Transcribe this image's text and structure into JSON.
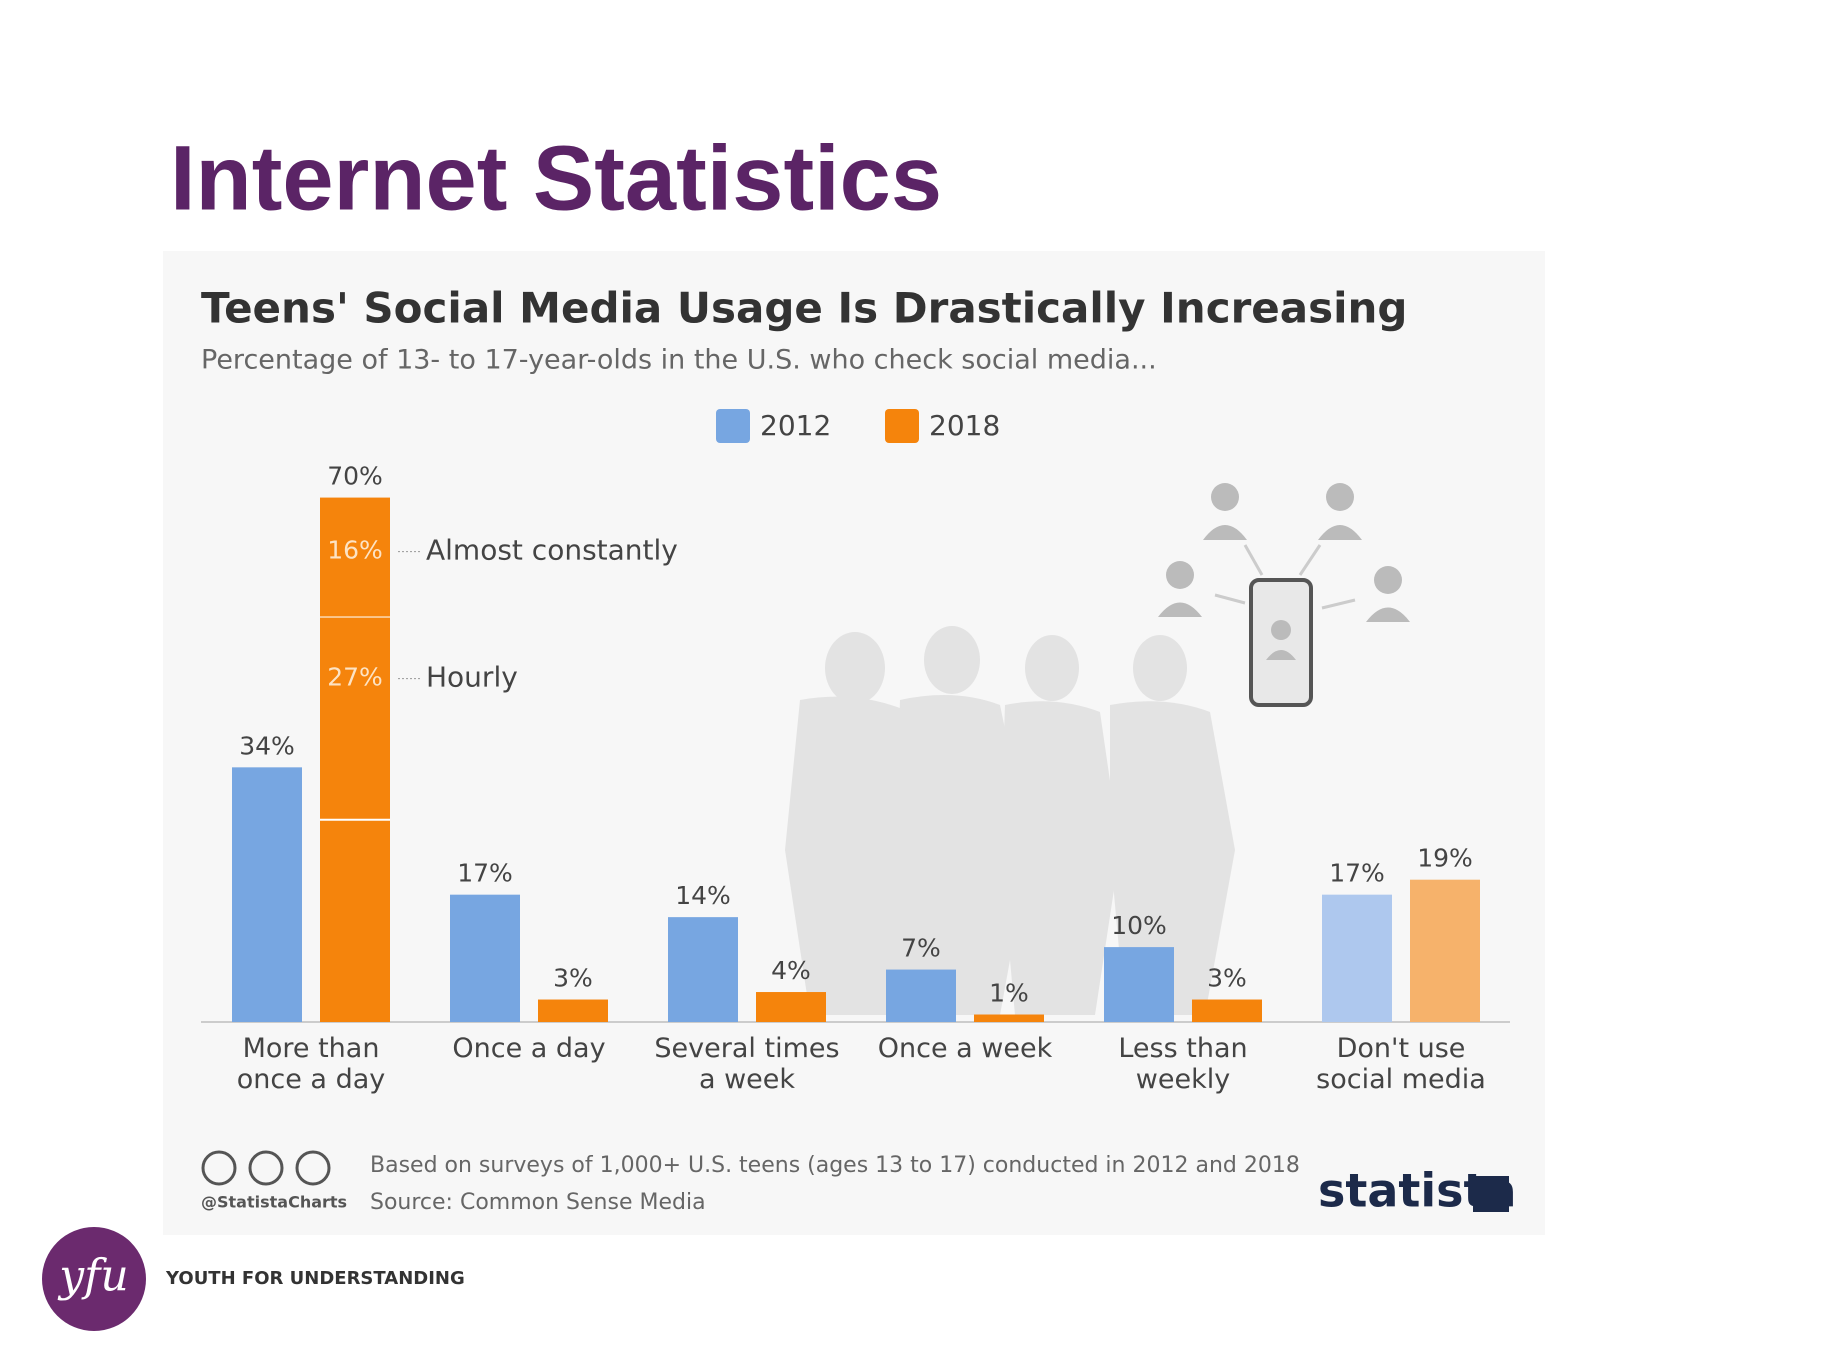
{
  "slide_title": "Internet Statistics",
  "chart_data": {
    "type": "bar",
    "title": "Teens' Social Media Usage Is Drastically Increasing",
    "subtitle": "Percentage of 13- to 17-year-olds in the U.S. who check social media...",
    "categories": [
      "More than\nonce a day",
      "Once a day",
      "Several times\na week",
      "Once a week",
      "Less than\nweekly",
      "Don't use\nsocial media"
    ],
    "series": [
      {
        "name": "2012",
        "color": "#77a6e1",
        "colors": [
          "#77a6e1",
          "#77a6e1",
          "#77a6e1",
          "#77a6e1",
          "#77a6e1",
          "#aec8ee"
        ],
        "values": [
          34,
          17,
          14,
          7,
          10,
          17
        ],
        "value_labels": [
          "34%",
          "17%",
          "14%",
          "7%",
          "10%",
          "17%"
        ]
      },
      {
        "name": "2018",
        "color": "#f5840c",
        "colors": [
          "#f5840c",
          "#f5840c",
          "#f5840c",
          "#f5840c",
          "#f5840c",
          "#f6b26b"
        ],
        "values": [
          70,
          3,
          4,
          1,
          3,
          19
        ],
        "value_labels": [
          "70%",
          "3%",
          "4%",
          "1%",
          "3%",
          "19%"
        ]
      }
    ],
    "breakdown": [
      {
        "name": "Almost constantly",
        "value": 16,
        "label": "16%"
      },
      {
        "name": "Hourly",
        "value": 27,
        "label": "27%"
      }
    ],
    "legend": "top",
    "note": "Based on surveys of 1,000+ U.S. teens (ages 13 to 17) conducted in 2012 and 2018",
    "source": "Source: Common Sense Media",
    "credit": "@StatistaCharts",
    "brand": "statista"
  },
  "footer": {
    "logo": "yfu",
    "organization": "YOUTH FOR UNDERSTANDING"
  }
}
